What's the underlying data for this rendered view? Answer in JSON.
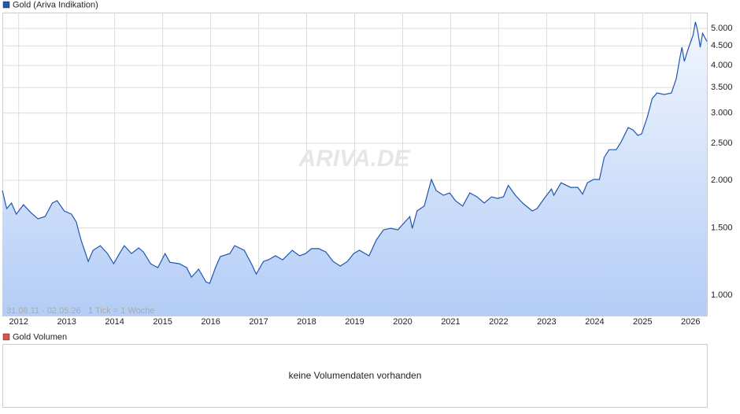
{
  "chart_data": {
    "type": "line",
    "series": [
      {
        "name": "Gold (Ariva Indikation)",
        "color": "#1f57b0",
        "values": [
          1880,
          1686,
          1743,
          1630,
          1726,
          1647,
          1585,
          1607,
          1743,
          1768,
          1662,
          1630,
          1555,
          1394,
          1226,
          1311,
          1348,
          1286,
          1209,
          1286,
          1348,
          1286,
          1330,
          1298,
          1209,
          1181,
          1286,
          1220,
          1209,
          1181,
          1115,
          1170,
          1084,
          1074,
          1181,
          1262,
          1286,
          1348,
          1311,
          1209,
          1136,
          1226,
          1238,
          1268,
          1238,
          1311,
          1268,
          1286,
          1324,
          1324,
          1298,
          1226,
          1192,
          1226,
          1286,
          1311,
          1268,
          1394,
          1483,
          1497,
          1483,
          1533,
          1607,
          1497,
          1662,
          1712,
          2010,
          1880,
          1827,
          1853,
          1768,
          1712,
          1853,
          1810,
          1743,
          1810,
          1793,
          1810,
          1940,
          1827,
          1743,
          1662,
          1686,
          1793,
          1898,
          1827,
          1970,
          1916,
          1916,
          1840,
          1970,
          2010,
          2010,
          2295,
          2405,
          2405,
          2520,
          2748,
          2710,
          2622,
          2646,
          2934,
          3275,
          3387,
          3355,
          3387,
          3690,
          4213,
          4460,
          4100,
          4420,
          4790,
          5200,
          4900,
          4460,
          4855,
          4620
        ]
      }
    ],
    "x": [
      2011.66,
      2011.75,
      2011.85,
      2011.95,
      2012.1,
      2012.25,
      2012.4,
      2012.55,
      2012.7,
      2012.8,
      2012.95,
      2013.1,
      2013.2,
      2013.3,
      2013.45,
      2013.55,
      2013.7,
      2013.85,
      2013.98,
      2014.1,
      2014.2,
      2014.35,
      2014.5,
      2014.6,
      2014.75,
      2014.9,
      2015.05,
      2015.15,
      2015.35,
      2015.5,
      2015.6,
      2015.75,
      2015.9,
      2015.98,
      2016.1,
      2016.2,
      2016.4,
      2016.5,
      2016.7,
      2016.85,
      2016.95,
      2017.1,
      2017.2,
      2017.35,
      2017.5,
      2017.7,
      2017.85,
      2017.98,
      2018.1,
      2018.25,
      2018.4,
      2018.55,
      2018.7,
      2018.85,
      2018.98,
      2019.1,
      2019.3,
      2019.45,
      2019.6,
      2019.75,
      2019.9,
      2020.0,
      2020.15,
      2020.2,
      2020.3,
      2020.45,
      2020.6,
      2020.7,
      2020.85,
      2020.98,
      2021.1,
      2021.25,
      2021.4,
      2021.55,
      2021.7,
      2021.85,
      2021.98,
      2022.1,
      2022.2,
      2022.35,
      2022.5,
      2022.7,
      2022.8,
      2022.95,
      2023.1,
      2023.15,
      2023.3,
      2023.5,
      2023.65,
      2023.75,
      2023.85,
      2023.98,
      2024.1,
      2024.2,
      2024.3,
      2024.45,
      2024.55,
      2024.7,
      2024.8,
      2024.9,
      2024.98,
      2025.1,
      2025.2,
      2025.3,
      2025.45,
      2025.6,
      2025.7,
      2025.78,
      2025.82,
      2025.87,
      2025.95,
      2026.05,
      2026.1,
      2026.15,
      2026.2,
      2026.25,
      2026.34
    ],
    "xlim": [
      2011.66,
      2026.34
    ],
    "xticks": [
      2012,
      2013,
      2014,
      2015,
      2016,
      2017,
      2018,
      2019,
      2020,
      2021,
      2022,
      2023,
      2024,
      2025,
      2026
    ],
    "ylim": [
      884,
      5500
    ],
    "log_scale": true,
    "yticks": [
      {
        "value": 1000,
        "label": "1.000"
      },
      {
        "value": 1500,
        "label": "1.500"
      },
      {
        "value": 2000,
        "label": "2.000"
      },
      {
        "value": 2500,
        "label": "2.500"
      },
      {
        "value": 3000,
        "label": "3.000"
      },
      {
        "value": 3500,
        "label": "3.500"
      },
      {
        "value": 4000,
        "label": "4.000"
      },
      {
        "value": 4500,
        "label": "4.500"
      },
      {
        "value": 5000,
        "label": "5.000"
      }
    ],
    "grid": true,
    "period_note": "31.08.11 - 02.05.26",
    "tick_note": "1 Tick = 1 Woche",
    "watermark": "ARIVA.DE",
    "volume_legend": {
      "name": "Gold Volumen",
      "color": "#d9534f"
    },
    "volume_message": "keine Volumendaten vorhanden"
  }
}
